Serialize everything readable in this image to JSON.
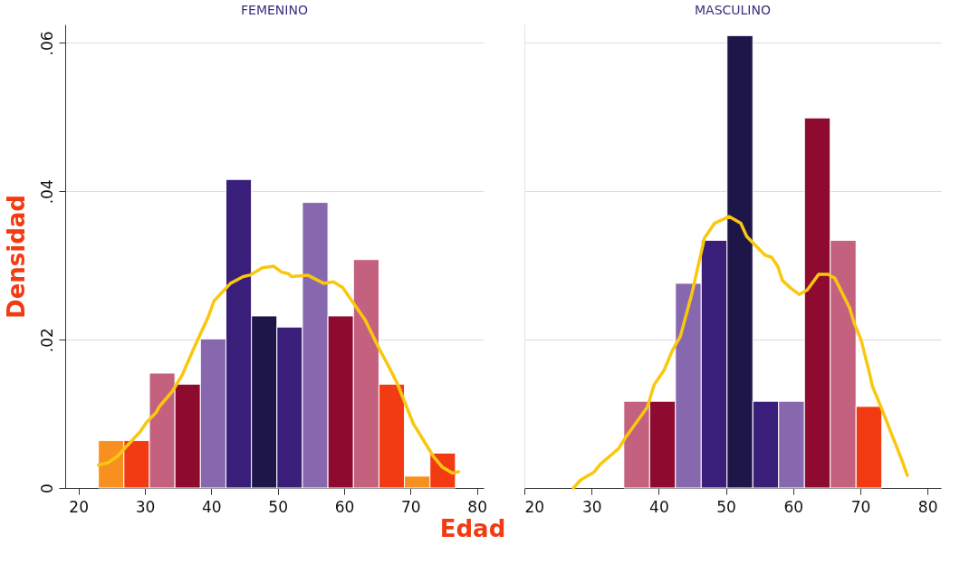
{
  "chart_data": [
    {
      "type": "histogram",
      "title": "FEMENINO",
      "xlabel": "Edad",
      "ylabel": "Densidad",
      "xlim": [
        18,
        81
      ],
      "xticks": [
        20,
        30,
        40,
        50,
        60,
        70,
        80
      ],
      "ylim": [
        0,
        0.0625
      ],
      "yticks": [
        0,
        {
          "value": 0.02,
          "label": ".02"
        },
        {
          "value": 0.04,
          "label": ".04"
        },
        {
          "value": 0.06,
          "label": ".06"
        }
      ],
      "grid": "y",
      "series": [
        {
          "bins": [
            23,
            26.84,
            30.68,
            34.52,
            38.36,
            42.2,
            46.04,
            49.88,
            53.72,
            57.56,
            61.4,
            65.24,
            69.08,
            72.92,
            76.76
          ],
          "values": [
            0.0064,
            0.0064,
            0.0155,
            0.014,
            0.0201,
            0.0416,
            0.0232,
            0.0217,
            0.0385,
            0.0232,
            0.0308,
            0.014,
            0.0016,
            0.0047
          ],
          "colors": [
            "#f7901e",
            "#f23b13",
            "#c4617f",
            "#8e0a2f",
            "#8768ae",
            "#3a1f7a",
            "#1e1648",
            "#3a1f7a",
            "#8768ae",
            "#8e0a2f",
            "#c4617f",
            "#f23b13",
            "#f7901e",
            "#f23b13"
          ]
        },
        {
          "type": "line",
          "color": "#f9c80e",
          "x": [
            23.0,
            24.45,
            25.9,
            26.9,
            29.3,
            30.3,
            31.7,
            32.2,
            34.1,
            35.6,
            37.5,
            39.5,
            40.4,
            42.9,
            44.8,
            45.8,
            47.7,
            49.4,
            50.6,
            51.6,
            52.1,
            54.5,
            56.9,
            58.4,
            59.8,
            60.8,
            63.2,
            65.1,
            67.1,
            68.0,
            70.4,
            71.9,
            73.4,
            74.8,
            76.3,
            77.2
          ],
          "values": [
            0.0031,
            0.0034,
            0.0043,
            0.0053,
            0.0076,
            0.0089,
            0.0102,
            0.011,
            0.013,
            0.0152,
            0.0191,
            0.023,
            0.0252,
            0.0276,
            0.0285,
            0.0287,
            0.0297,
            0.0299,
            0.0291,
            0.0289,
            0.0285,
            0.0287,
            0.0276,
            0.0278,
            0.027,
            0.0257,
            0.0226,
            0.0191,
            0.0157,
            0.0141,
            0.0087,
            0.0065,
            0.0043,
            0.0028,
            0.002,
            0.0022
          ]
        }
      ]
    },
    {
      "type": "histogram",
      "title": "MASCULINO",
      "xlim": [
        20,
        82
      ],
      "xticks": [
        20,
        30,
        40,
        50,
        60,
        70,
        80
      ],
      "ylim": [
        0,
        0.0625
      ],
      "yticks": [
        0,
        0.02,
        0.04,
        0.06
      ],
      "grid": "y",
      "tick_labels": "x",
      "series": [
        {
          "bins": [
            34.8,
            38.64,
            42.48,
            46.32,
            50.16,
            54.0,
            57.84,
            61.68,
            65.52,
            69.36,
            73.2
          ],
          "values": [
            0.0117,
            0.0117,
            0.0276,
            0.0334,
            0.061,
            0.0117,
            0.0117,
            0.0499,
            0.0334,
            0.011
          ],
          "colors": [
            "#c4617f",
            "#8e0a2f",
            "#8768ae",
            "#3a1f7a",
            "#1e1648",
            "#3a1f7a",
            "#8768ae",
            "#8e0a2f",
            "#c4617f",
            "#f23b13"
          ]
        },
        {
          "type": "line",
          "color": "#f9c80e",
          "x": [
            27.3,
            28.4,
            30.3,
            31.3,
            34.0,
            35.2,
            38.3,
            39.3,
            40.8,
            42.0,
            43.2,
            44.9,
            46.8,
            48.3,
            50.5,
            52.2,
            53.1,
            55.8,
            56.8,
            57.7,
            58.4,
            59.7,
            60.9,
            62.1,
            63.8,
            65.2,
            66.2,
            68.4,
            69.1,
            70.1,
            71.3,
            71.8,
            73.0,
            74.5,
            76.2,
            77.0
          ],
          "values": [
            0,
            0.0011,
            0.0021,
            0.0032,
            0.0053,
            0.007,
            0.0109,
            0.0139,
            0.0159,
            0.0185,
            0.0204,
            0.0261,
            0.0337,
            0.0357,
            0.0366,
            0.0357,
            0.0339,
            0.0314,
            0.0311,
            0.0299,
            0.028,
            0.0269,
            0.0261,
            0.0267,
            0.0288,
            0.0288,
            0.0283,
            0.0243,
            0.0222,
            0.02,
            0.0157,
            0.0137,
            0.0111,
            0.0076,
            0.0037,
            0.0017
          ]
        }
      ]
    }
  ]
}
